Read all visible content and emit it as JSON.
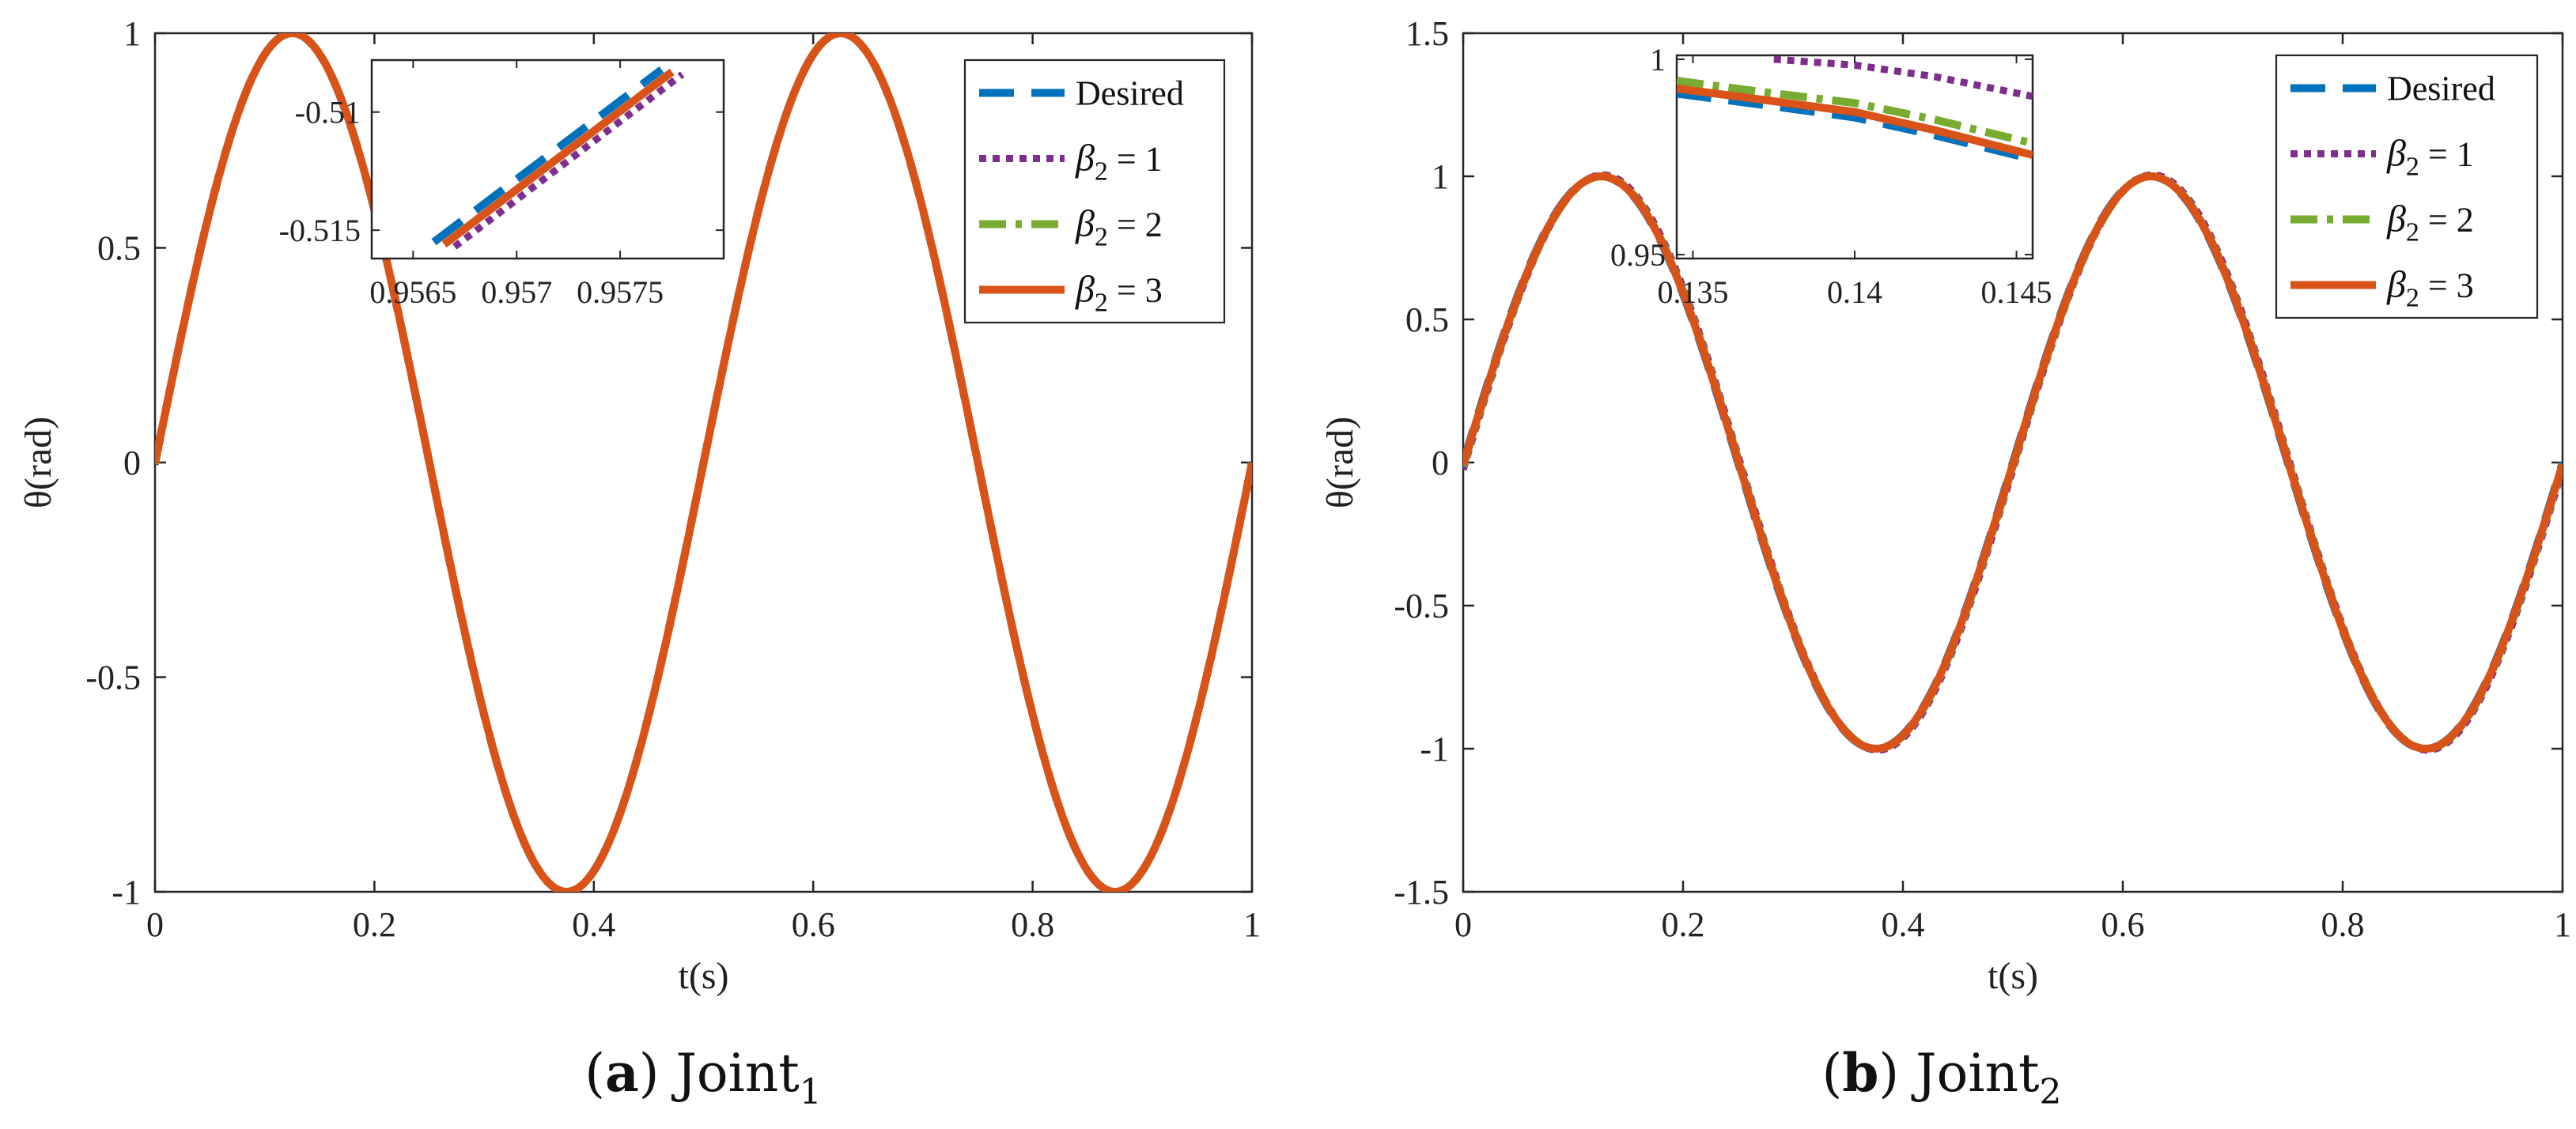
{
  "colors": {
    "desired": "#0072BD",
    "beta1": "#7E2F8E",
    "beta2": "#77AC30",
    "beta3": "#D95319",
    "axis": "#262626"
  },
  "legend_entries": [
    {
      "key": "desired",
      "label": "Desired",
      "style": "dashed"
    },
    {
      "key": "beta1",
      "label": "β2 = 1",
      "sym": "β",
      "sub": "2",
      "val": " = 1",
      "style": "dotted"
    },
    {
      "key": "beta2",
      "label": "β2 = 2",
      "sym": "β",
      "sub": "2",
      "val": " = 2",
      "style": "dashdot"
    },
    {
      "key": "beta3",
      "label": "β2 = 3",
      "sym": "β",
      "sub": "2",
      "val": " = 3",
      "style": "solid"
    }
  ],
  "chart_data": [
    {
      "id": "a",
      "type": "line",
      "caption_letter": "a",
      "caption_text": " Joint",
      "caption_sub": "1",
      "xlabel": "t(s)",
      "ylabel": "θ(rad)",
      "xlim": [
        0,
        1
      ],
      "ylim": [
        -1,
        1
      ],
      "xticks": [
        0,
        0.2,
        0.4,
        0.6,
        0.8,
        1
      ],
      "xtick_labels": [
        "0",
        "0.2",
        "0.4",
        "0.6",
        "0.8",
        "1"
      ],
      "yticks": [
        1,
        0.5,
        0,
        -0.5,
        -1
      ],
      "ytick_labels": [
        "1",
        "0.5",
        "0",
        "-0.5",
        "-1"
      ],
      "function": "sin(4*pi*t)",
      "series": [
        {
          "name": "Desired",
          "key": "desired",
          "amplitude": 1,
          "time_shift": 0
        },
        {
          "name": "β2 = 1",
          "key": "beta1",
          "amplitude": 1,
          "time_shift": 0.0004
        },
        {
          "name": "β2 = 2",
          "key": "beta2",
          "amplitude": 1,
          "time_shift": 0.0002
        },
        {
          "name": "β2 = 3",
          "key": "beta3",
          "amplitude": 1,
          "time_shift": 0.0001
        }
      ],
      "inset": {
        "xlim": [
          0.9563,
          0.958
        ],
        "ylim": [
          -0.5162,
          -0.5078
        ],
        "xticks": [
          0.9565,
          0.957,
          0.9575
        ],
        "xtick_labels": [
          "0.9565",
          "0.957",
          "0.9575"
        ],
        "yticks": [
          -0.51,
          -0.515
        ],
        "ytick_labels": [
          "-0.51",
          "-0.515"
        ],
        "series": [
          {
            "key": "desired",
            "x": [
              0.9566,
              0.9577
            ],
            "y": [
              -0.5155,
              -0.5082
            ]
          },
          {
            "key": "beta1",
            "x": [
              0.9567,
              0.9578
            ],
            "y": [
              -0.5157,
              -0.5084
            ]
          },
          {
            "key": "beta2",
            "x": [
              0.95665,
              0.95775
            ],
            "y": [
              -0.5156,
              -0.5083
            ]
          },
          {
            "key": "beta3",
            "x": [
              0.95665,
              0.95775
            ],
            "y": [
              -0.5156,
              -0.5083
            ]
          }
        ]
      }
    },
    {
      "id": "b",
      "type": "line",
      "caption_letter": "b",
      "caption_text": " Joint",
      "caption_sub": "2",
      "xlabel": "t(s)",
      "ylabel": "θ(rad)",
      "xlim": [
        0,
        1
      ],
      "ylim": [
        -1.5,
        1.5
      ],
      "xticks": [
        0,
        0.2,
        0.4,
        0.6,
        0.8,
        1
      ],
      "xtick_labels": [
        "0",
        "0.2",
        "0.4",
        "0.6",
        "0.8",
        "1"
      ],
      "yticks": [
        1.5,
        1,
        0.5,
        0,
        -0.5,
        -1,
        -1.5
      ],
      "ytick_labels": [
        "1.5",
        "1",
        "0.5",
        "0",
        "-0.5",
        "-1",
        "-1.5"
      ],
      "function": "sin(4*pi*t)",
      "series": [
        {
          "name": "Desired",
          "key": "desired",
          "amplitude": 1,
          "time_shift": 0
        },
        {
          "name": "β2 = 1",
          "key": "beta1",
          "amplitude": 1.005,
          "time_shift": 0.002
        },
        {
          "name": "β2 = 2",
          "key": "beta2",
          "amplitude": 1,
          "time_shift": 0.001
        },
        {
          "name": "β2 = 3",
          "key": "beta3",
          "amplitude": 1,
          "time_shift": 0.0005
        }
      ],
      "inset": {
        "xlim": [
          0.1345,
          0.1455
        ],
        "ylim": [
          0.949,
          1.001
        ],
        "xticks": [
          0.135,
          0.14,
          0.145
        ],
        "xtick_labels": [
          "0.135",
          "0.14",
          "0.145"
        ],
        "yticks": [
          1,
          0.95
        ],
        "ytick_labels": [
          "1",
          "0.95"
        ],
        "series": [
          {
            "key": "desired",
            "x": [
              0.1345,
              0.137,
              0.14,
              0.1425,
              0.1455
            ],
            "y": [
              0.9912,
              0.9885,
              0.9851,
              0.9805,
              0.9744
            ]
          },
          {
            "key": "beta1",
            "x": [
              0.1375,
              0.14,
              0.1425,
              0.1455
            ],
            "y": [
              1.0,
              0.9985,
              0.9955,
              0.9905
            ]
          },
          {
            "key": "beta2",
            "x": [
              0.1345,
              0.137,
              0.14,
              0.1425,
              0.1455
            ],
            "y": [
              0.9945,
              0.9918,
              0.9888,
              0.9845,
              0.9785
            ]
          },
          {
            "key": "beta3",
            "x": [
              0.1345,
              0.137,
              0.14,
              0.1425,
              0.1455
            ],
            "y": [
              0.9925,
              0.9898,
              0.9865,
              0.9818,
              0.9755
            ]
          }
        ]
      }
    }
  ]
}
